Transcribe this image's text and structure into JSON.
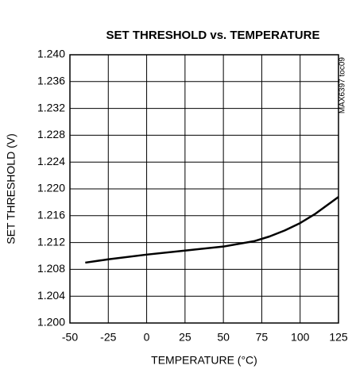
{
  "chart_data": {
    "type": "line",
    "title": "SET THRESHOLD vs. TEMPERATURE",
    "xlabel": "TEMPERATURE (°C)",
    "ylabel": "SET THRESHOLD (V)",
    "annotation": "MAX6397 toc09",
    "x": [
      -40,
      -25,
      0,
      25,
      50,
      70,
      80,
      90,
      100,
      110,
      125
    ],
    "series": [
      {
        "color": "#000000",
        "values": [
          1.209,
          1.2095,
          1.2102,
          1.2108,
          1.2114,
          1.2122,
          1.2129,
          1.2138,
          1.2149,
          1.2163,
          1.2188
        ]
      }
    ],
    "xlim": [
      -50,
      125
    ],
    "xticks": [
      -50,
      -25,
      0,
      25,
      50,
      75,
      100,
      125
    ],
    "ylim": [
      1.2,
      1.24
    ],
    "yticks": [
      {
        "value": 1.2,
        "label": "1.200"
      },
      {
        "value": 1.204,
        "label": "1.204"
      },
      {
        "value": 1.208,
        "label": "1.208"
      },
      {
        "value": 1.212,
        "label": "1.212"
      },
      {
        "value": 1.216,
        "label": "1.216"
      },
      {
        "value": 1.22,
        "label": "1.220"
      },
      {
        "value": 1.224,
        "label": "1.224"
      },
      {
        "value": 1.228,
        "label": "1.228"
      },
      {
        "value": 1.232,
        "label": "1.232"
      },
      {
        "value": 1.236,
        "label": "1.236"
      },
      {
        "value": 1.24,
        "label": "1.240"
      }
    ],
    "grid": true
  }
}
